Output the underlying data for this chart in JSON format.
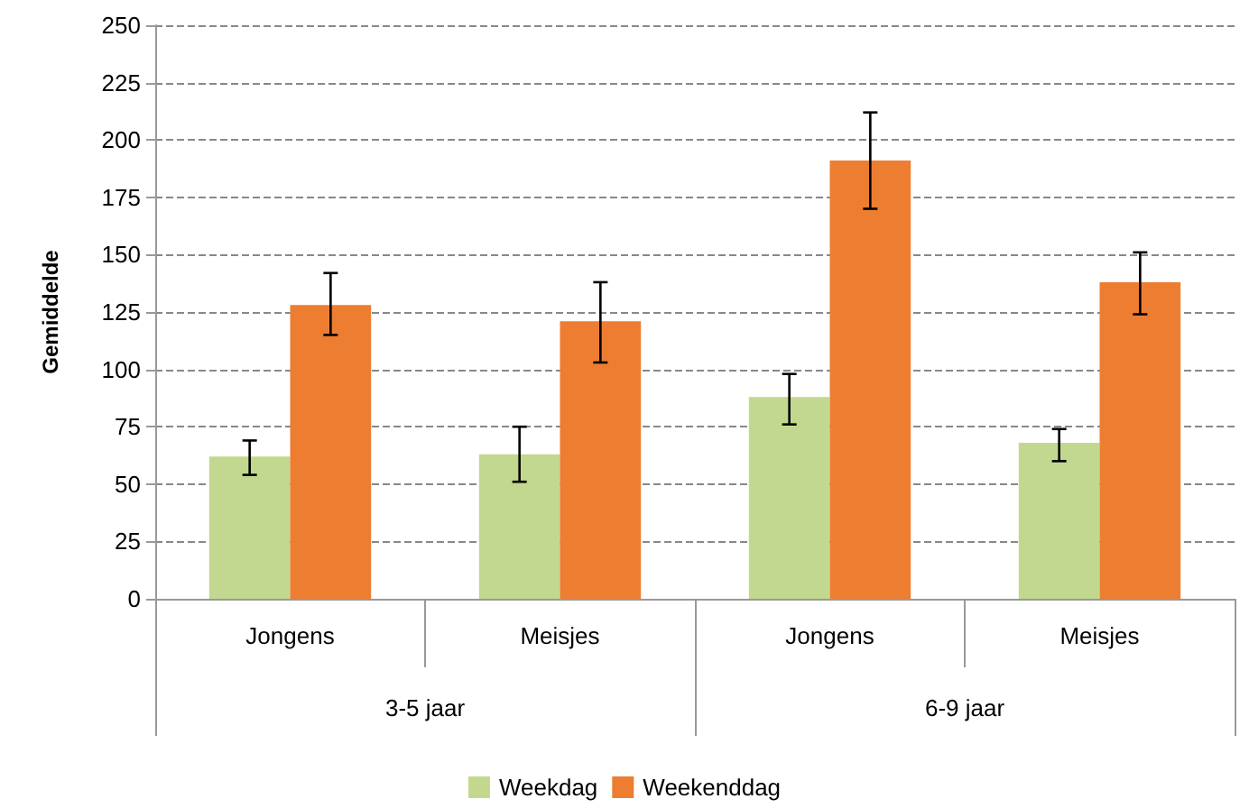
{
  "chart_data": {
    "type": "bar",
    "ylabel": "Gemiddelde",
    "categories": [
      "Jongens",
      "Meisjes",
      "Jongens",
      "Meisjes"
    ],
    "annotations": [
      "3-5 jaar",
      "6-9 jaar"
    ],
    "series": [
      {
        "name": "Weekdag",
        "color": "#c3d88f",
        "values": [
          62,
          63,
          88,
          68
        ],
        "errors": [
          [
            54,
            69
          ],
          [
            51,
            75
          ],
          [
            76,
            98
          ],
          [
            60,
            74
          ]
        ]
      },
      {
        "name": "Weekenddag",
        "color": "#ed7d31",
        "values": [
          128,
          121,
          191,
          138
        ],
        "errors": [
          [
            115,
            142
          ],
          [
            103,
            138
          ],
          [
            170,
            212
          ],
          [
            124,
            151
          ]
        ]
      }
    ],
    "ylim": [
      0,
      250
    ],
    "yticks": [
      0,
      25,
      50,
      75,
      100,
      125,
      150,
      175,
      200,
      225,
      250
    ],
    "grid": "y",
    "legend": "bottom"
  }
}
